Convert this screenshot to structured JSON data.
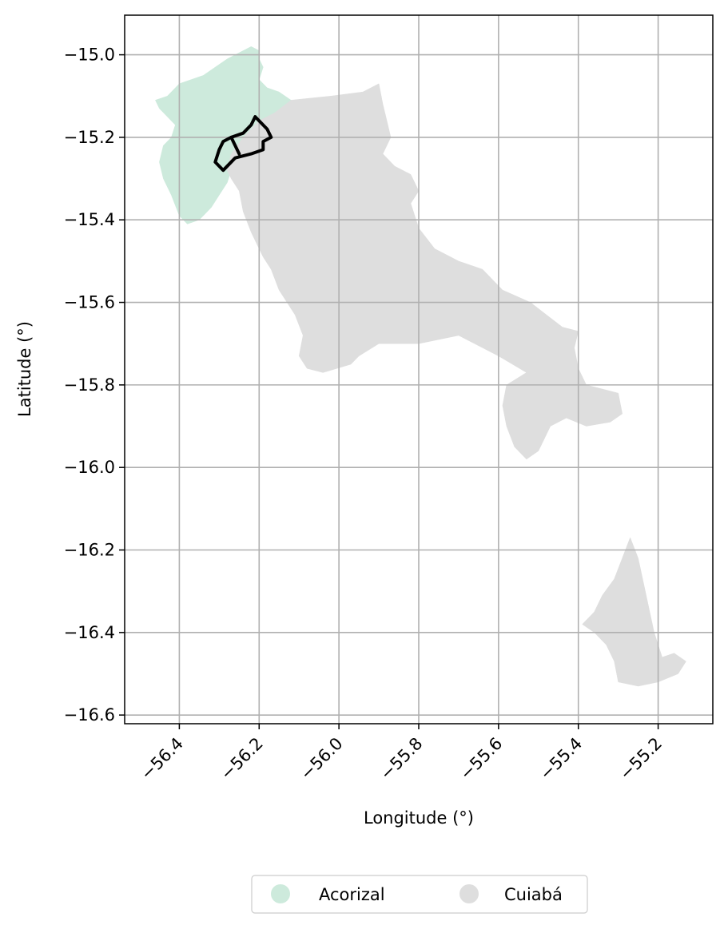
{
  "chart_data": {
    "type": "map",
    "xlabel": "Longitude (°)",
    "ylabel": "Latitude (°)",
    "xlim": [
      -56.537,
      -55.063
    ],
    "ylim": [
      -16.621,
      -14.904
    ],
    "xticks": [
      {
        "value": -56.4,
        "label": "−56.4"
      },
      {
        "value": -56.2,
        "label": "−56.2"
      },
      {
        "value": -56.0,
        "label": "−56.0"
      },
      {
        "value": -55.8,
        "label": "−55.8"
      },
      {
        "value": -55.6,
        "label": "−55.6"
      },
      {
        "value": -55.4,
        "label": "−55.4"
      },
      {
        "value": -55.2,
        "label": "−55.2"
      }
    ],
    "yticks": [
      {
        "value": -15.0,
        "label": "−15.0"
      },
      {
        "value": -15.2,
        "label": "−15.2"
      },
      {
        "value": -15.4,
        "label": "−15.4"
      },
      {
        "value": -15.6,
        "label": "−15.6"
      },
      {
        "value": -15.8,
        "label": "−15.8"
      },
      {
        "value": -16.0,
        "label": "−16.0"
      },
      {
        "value": -16.2,
        "label": "−16.2"
      },
      {
        "value": -16.4,
        "label": "−16.4"
      },
      {
        "value": -16.6,
        "label": "−16.6"
      }
    ],
    "grid": true,
    "legend_position": "bottom-center",
    "legend": [
      {
        "label": "Acorizal",
        "color": "#cdeadc"
      },
      {
        "label": "Cuiabá",
        "color": "#dedede"
      }
    ],
    "regions": [
      {
        "name": "Acorizal",
        "color": "#cdeadc",
        "polygon": [
          [
            -56.26,
            -15.0
          ],
          [
            -56.22,
            -14.98
          ],
          [
            -56.2,
            -14.99
          ],
          [
            -56.2,
            -15.01
          ],
          [
            -56.19,
            -15.03
          ],
          [
            -56.2,
            -15.06
          ],
          [
            -56.18,
            -15.08
          ],
          [
            -56.15,
            -15.09
          ],
          [
            -56.12,
            -15.11
          ],
          [
            -56.16,
            -15.14
          ],
          [
            -56.2,
            -15.16
          ],
          [
            -56.23,
            -15.19
          ],
          [
            -56.26,
            -15.23
          ],
          [
            -56.27,
            -15.28
          ],
          [
            -56.28,
            -15.31
          ],
          [
            -56.3,
            -15.34
          ],
          [
            -56.32,
            -15.37
          ],
          [
            -56.35,
            -15.4
          ],
          [
            -56.38,
            -15.41
          ],
          [
            -56.4,
            -15.39
          ],
          [
            -56.42,
            -15.34
          ],
          [
            -56.44,
            -15.3
          ],
          [
            -56.45,
            -15.26
          ],
          [
            -56.44,
            -15.22
          ],
          [
            -56.42,
            -15.2
          ],
          [
            -56.41,
            -15.17
          ],
          [
            -56.43,
            -15.15
          ],
          [
            -56.45,
            -15.13
          ],
          [
            -56.46,
            -15.11
          ],
          [
            -56.43,
            -15.1
          ],
          [
            -56.4,
            -15.07
          ],
          [
            -56.37,
            -15.06
          ],
          [
            -56.34,
            -15.05
          ],
          [
            -56.31,
            -15.03
          ],
          [
            -56.28,
            -15.01
          ]
        ]
      },
      {
        "name": "Cuiabá",
        "color": "#dedede",
        "polygon": [
          [
            -56.12,
            -15.11
          ],
          [
            -56.02,
            -15.1
          ],
          [
            -55.94,
            -15.09
          ],
          [
            -55.9,
            -15.07
          ],
          [
            -55.89,
            -15.12
          ],
          [
            -55.88,
            -15.16
          ],
          [
            -55.87,
            -15.2
          ],
          [
            -55.89,
            -15.24
          ],
          [
            -55.86,
            -15.27
          ],
          [
            -55.82,
            -15.29
          ],
          [
            -55.8,
            -15.33
          ],
          [
            -55.82,
            -15.36
          ],
          [
            -55.8,
            -15.42
          ],
          [
            -55.76,
            -15.47
          ],
          [
            -55.7,
            -15.5
          ],
          [
            -55.64,
            -15.52
          ],
          [
            -55.59,
            -15.57
          ],
          [
            -55.52,
            -15.6
          ],
          [
            -55.48,
            -15.63
          ],
          [
            -55.44,
            -15.66
          ],
          [
            -55.4,
            -15.67
          ],
          [
            -55.41,
            -15.71
          ],
          [
            -55.4,
            -15.76
          ],
          [
            -55.38,
            -15.8
          ],
          [
            -55.34,
            -15.81
          ],
          [
            -55.3,
            -15.82
          ],
          [
            -55.29,
            -15.87
          ],
          [
            -55.32,
            -15.89
          ],
          [
            -55.38,
            -15.9
          ],
          [
            -55.43,
            -15.88
          ],
          [
            -55.47,
            -15.9
          ],
          [
            -55.5,
            -15.96
          ],
          [
            -55.53,
            -15.98
          ],
          [
            -55.56,
            -15.95
          ],
          [
            -55.58,
            -15.9
          ],
          [
            -55.59,
            -15.85
          ],
          [
            -55.58,
            -15.8
          ],
          [
            -55.53,
            -15.77
          ],
          [
            -55.6,
            -15.73
          ],
          [
            -55.7,
            -15.68
          ],
          [
            -55.8,
            -15.7
          ],
          [
            -55.9,
            -15.7
          ],
          [
            -55.95,
            -15.73
          ],
          [
            -55.97,
            -15.75
          ],
          [
            -56.04,
            -15.77
          ],
          [
            -56.08,
            -15.76
          ],
          [
            -56.1,
            -15.73
          ],
          [
            -56.09,
            -15.68
          ],
          [
            -56.11,
            -15.63
          ],
          [
            -56.15,
            -15.57
          ],
          [
            -56.17,
            -15.52
          ],
          [
            -56.19,
            -15.49
          ],
          [
            -56.22,
            -15.43
          ],
          [
            -56.24,
            -15.38
          ],
          [
            -56.25,
            -15.33
          ],
          [
            -56.27,
            -15.3
          ],
          [
            -56.28,
            -15.28
          ],
          [
            -56.27,
            -15.24
          ],
          [
            -56.24,
            -15.2
          ],
          [
            -56.2,
            -15.16
          ],
          [
            -56.16,
            -15.14
          ]
        ]
      },
      {
        "name": "Cuiabá",
        "color": "#dedede",
        "polygon": [
          [
            -55.27,
            -16.17
          ],
          [
            -55.25,
            -16.22
          ],
          [
            -55.23,
            -16.31
          ],
          [
            -55.21,
            -16.4
          ],
          [
            -55.19,
            -16.46
          ],
          [
            -55.16,
            -16.45
          ],
          [
            -55.13,
            -16.47
          ],
          [
            -55.15,
            -16.5
          ],
          [
            -55.2,
            -16.52
          ],
          [
            -55.25,
            -16.53
          ],
          [
            -55.3,
            -16.52
          ],
          [
            -55.31,
            -16.47
          ],
          [
            -55.33,
            -16.43
          ],
          [
            -55.36,
            -16.4
          ],
          [
            -55.39,
            -16.38
          ],
          [
            -55.36,
            -16.35
          ],
          [
            -55.34,
            -16.31
          ],
          [
            -55.31,
            -16.27
          ],
          [
            -55.29,
            -16.22
          ]
        ]
      }
    ],
    "outline": [
      [
        -56.21,
        -15.15
      ],
      [
        -56.18,
        -15.18
      ],
      [
        -56.17,
        -15.2
      ],
      [
        -56.19,
        -15.21
      ],
      [
        -56.19,
        -15.23
      ],
      [
        -56.22,
        -15.24
      ],
      [
        -56.26,
        -15.25
      ],
      [
        -56.29,
        -15.28
      ],
      [
        -56.31,
        -15.26
      ],
      [
        -56.3,
        -15.23
      ],
      [
        -56.29,
        -15.21
      ],
      [
        -56.27,
        -15.2
      ],
      [
        -56.24,
        -15.19
      ],
      [
        -56.22,
        -15.17
      ]
    ],
    "outline_inner": [
      [
        -56.27,
        -15.2
      ],
      [
        -56.25,
        -15.24
      ]
    ]
  }
}
